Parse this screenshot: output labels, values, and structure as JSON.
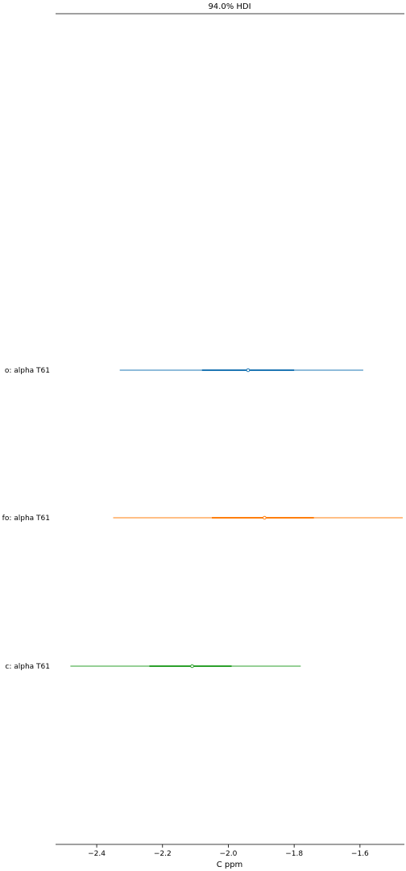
{
  "chart_data": {
    "type": "forest",
    "title": "94.0% HDI",
    "xlabel": "C ppm",
    "ylabel": "",
    "xlim": [
      -2.525,
      -1.465
    ],
    "xticks": [
      -2.4,
      -2.2,
      -2.0,
      -1.8,
      -1.6
    ],
    "xtick_labels": [
      "−2.4",
      "−2.2",
      "−2.0",
      "−1.8",
      "−1.6"
    ],
    "grid": false,
    "series": [
      {
        "label": "o: alpha T61",
        "color": "#1f77b4",
        "hdi_low": -2.33,
        "hdi_high": -1.59,
        "iqr_low": -2.08,
        "iqr_high": -1.8,
        "point": -1.94
      },
      {
        "label": "fo: alpha T61",
        "color": "#ff7f0e",
        "hdi_low": -2.35,
        "hdi_high": -1.47,
        "iqr_low": -2.05,
        "iqr_high": -1.74,
        "point": -1.89
      },
      {
        "label": "c: alpha T61",
        "color": "#2ca02c",
        "hdi_low": -2.48,
        "hdi_high": -1.78,
        "iqr_low": -2.24,
        "iqr_high": -1.99,
        "point": -2.11
      }
    ]
  }
}
